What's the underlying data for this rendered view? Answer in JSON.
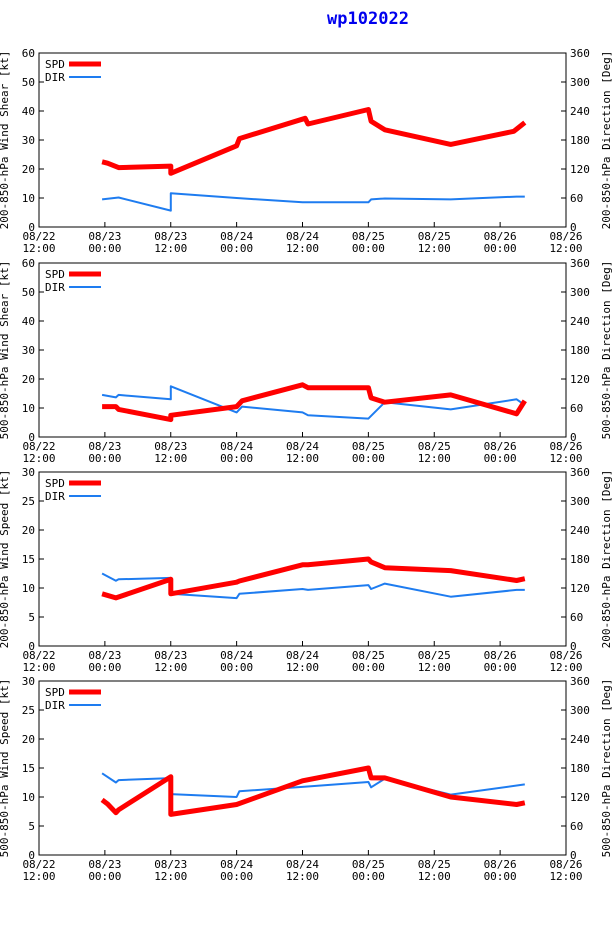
{
  "title": "wp102022",
  "colors": {
    "spd": "#ff0000",
    "dir": "#1e7cf0",
    "axis": "#000000"
  },
  "chart_data": [
    {
      "type": "line",
      "ylabel": "200-850-hPa Wind Shear [kt]",
      "y2label": "200-850-hPa Direction [Deg]",
      "ylim": [
        0,
        60
      ],
      "yticks": [
        0,
        10,
        20,
        30,
        40,
        50,
        60
      ],
      "y2lim": [
        0,
        360
      ],
      "y2ticks": [
        0,
        60,
        120,
        180,
        240,
        300,
        360
      ],
      "xlim": [
        0,
        96
      ],
      "xticks": [
        {
          "t": 0,
          "l1": "08/22",
          "l2": "12:00"
        },
        {
          "t": 12,
          "l1": "08/23",
          "l2": "00:00"
        },
        {
          "t": 24,
          "l1": "08/23",
          "l2": "12:00"
        },
        {
          "t": 36,
          "l1": "08/24",
          "l2": "00:00"
        },
        {
          "t": 48,
          "l1": "08/24",
          "l2": "12:00"
        },
        {
          "t": 60,
          "l1": "08/25",
          "l2": "00:00"
        },
        {
          "t": 72,
          "l1": "08/25",
          "l2": "12:00"
        },
        {
          "t": 84,
          "l1": "08/26",
          "l2": "00:00"
        },
        {
          "t": 96,
          "l1": "08/26",
          "l2": "12:00"
        }
      ],
      "legend": [
        "SPD",
        "DIR"
      ],
      "series": [
        {
          "name": "SPD",
          "axis": "left",
          "x": [
            11.5,
            12.5,
            14.5,
            24,
            24,
            36,
            36.5,
            48.5,
            49,
            60,
            60.5,
            63,
            75,
            86.5,
            88.5
          ],
          "y": [
            22.5,
            22,
            20.5,
            21,
            18.5,
            28,
            30.5,
            37.5,
            35.5,
            40.5,
            36.5,
            33.5,
            28.5,
            33,
            36
          ]
        },
        {
          "name": "DIR",
          "axis": "right",
          "x": [
            11.5,
            14.5,
            24,
            24,
            36,
            48,
            60,
            60.5,
            63,
            75,
            87,
            88.5
          ],
          "y": [
            57,
            61,
            34,
            70,
            60,
            51,
            51,
            57,
            59,
            57,
            63,
            63
          ]
        }
      ]
    },
    {
      "type": "line",
      "ylabel": "500-850-hPa Wind Shear [kt]",
      "y2label": "500-850-hPa Direction [Deg]",
      "ylim": [
        0,
        60
      ],
      "yticks": [
        0,
        10,
        20,
        30,
        40,
        50,
        60
      ],
      "y2lim": [
        0,
        360
      ],
      "y2ticks": [
        0,
        60,
        120,
        180,
        240,
        300,
        360
      ],
      "xlim": [
        0,
        96
      ],
      "xticks": [
        {
          "t": 0,
          "l1": "08/22",
          "l2": "12:00"
        },
        {
          "t": 12,
          "l1": "08/23",
          "l2": "00:00"
        },
        {
          "t": 24,
          "l1": "08/23",
          "l2": "12:00"
        },
        {
          "t": 36,
          "l1": "08/24",
          "l2": "00:00"
        },
        {
          "t": 48,
          "l1": "08/24",
          "l2": "12:00"
        },
        {
          "t": 60,
          "l1": "08/25",
          "l2": "00:00"
        },
        {
          "t": 72,
          "l1": "08/25",
          "l2": "12:00"
        },
        {
          "t": 84,
          "l1": "08/26",
          "l2": "00:00"
        },
        {
          "t": 96,
          "l1": "08/26",
          "l2": "12:00"
        }
      ],
      "legend": [
        "SPD",
        "DIR"
      ],
      "series": [
        {
          "name": "SPD",
          "axis": "left",
          "x": [
            11.5,
            14,
            14.5,
            24,
            24,
            36,
            37,
            48,
            49,
            60,
            60.5,
            63,
            75,
            87,
            88.5
          ],
          "y": [
            10.5,
            10.5,
            9.5,
            6,
            7.5,
            10.5,
            12.5,
            18,
            17,
            17,
            13.5,
            12,
            14.5,
            8,
            12.5
          ]
        },
        {
          "name": "DIR",
          "axis": "right",
          "x": [
            11.5,
            14,
            14.5,
            24,
            24,
            36,
            37,
            48,
            49,
            60,
            63,
            75,
            87,
            88.5
          ],
          "y": [
            87,
            82,
            87,
            78,
            105,
            51,
            63,
            51,
            45,
            38,
            72,
            57,
            78,
            66
          ]
        }
      ]
    },
    {
      "type": "line",
      "ylabel": "200-850-hPa Wind Speed [kt]",
      "y2label": "200-850-hPa Direction [Deg]",
      "ylim": [
        0,
        30
      ],
      "yticks": [
        0,
        5,
        10,
        15,
        20,
        25,
        30
      ],
      "y2lim": [
        0,
        360
      ],
      "y2ticks": [
        0,
        60,
        120,
        180,
        240,
        300,
        360
      ],
      "xlim": [
        0,
        96
      ],
      "xticks": [
        {
          "t": 0,
          "l1": "08/22",
          "l2": "12:00"
        },
        {
          "t": 12,
          "l1": "08/23",
          "l2": "00:00"
        },
        {
          "t": 24,
          "l1": "08/23",
          "l2": "12:00"
        },
        {
          "t": 36,
          "l1": "08/24",
          "l2": "00:00"
        },
        {
          "t": 48,
          "l1": "08/24",
          "l2": "12:00"
        },
        {
          "t": 60,
          "l1": "08/25",
          "l2": "00:00"
        },
        {
          "t": 72,
          "l1": "08/25",
          "l2": "12:00"
        },
        {
          "t": 84,
          "l1": "08/26",
          "l2": "00:00"
        },
        {
          "t": 96,
          "l1": "08/26",
          "l2": "12:00"
        }
      ],
      "legend": [
        "SPD",
        "DIR"
      ],
      "series": [
        {
          "name": "SPD",
          "axis": "left",
          "x": [
            11.5,
            14,
            24,
            24,
            36,
            36.5,
            48,
            49,
            60,
            60.5,
            63,
            75,
            87,
            88.5
          ],
          "y": [
            9,
            8.3,
            11.5,
            9,
            11,
            11.2,
            14,
            14,
            15,
            14.5,
            13.5,
            13,
            11.3,
            11.6
          ]
        },
        {
          "name": "DIR",
          "axis": "right",
          "x": [
            11.5,
            14,
            14.5,
            24,
            24,
            36,
            36.5,
            48,
            49,
            60,
            60.5,
            63,
            75,
            87,
            88.5
          ],
          "y": [
            150,
            135,
            138,
            141,
            108,
            99,
            108,
            118,
            116,
            126,
            118,
            129,
            102,
            116,
            116
          ]
        }
      ]
    },
    {
      "type": "line",
      "ylabel": "500-850-hPa Wind Speed [kt]",
      "y2label": "500-850-hPa Direction [Deg]",
      "ylim": [
        0,
        30
      ],
      "yticks": [
        0,
        5,
        10,
        15,
        20,
        25,
        30
      ],
      "y2lim": [
        0,
        360
      ],
      "y2ticks": [
        0,
        60,
        120,
        180,
        240,
        300,
        360
      ],
      "xlim": [
        0,
        96
      ],
      "xticks": [
        {
          "t": 0,
          "l1": "08/22",
          "l2": "12:00"
        },
        {
          "t": 12,
          "l1": "08/23",
          "l2": "00:00"
        },
        {
          "t": 24,
          "l1": "08/23",
          "l2": "12:00"
        },
        {
          "t": 36,
          "l1": "08/24",
          "l2": "00:00"
        },
        {
          "t": 48,
          "l1": "08/24",
          "l2": "12:00"
        },
        {
          "t": 60,
          "l1": "08/25",
          "l2": "00:00"
        },
        {
          "t": 72,
          "l1": "08/25",
          "l2": "12:00"
        },
        {
          "t": 84,
          "l1": "08/26",
          "l2": "00:00"
        },
        {
          "t": 96,
          "l1": "08/26",
          "l2": "12:00"
        }
      ],
      "legend": [
        "SPD",
        "DIR"
      ],
      "series": [
        {
          "name": "SPD",
          "axis": "left",
          "x": [
            11.5,
            12.5,
            14,
            14.5,
            24,
            24,
            36,
            48,
            60,
            60.5,
            63,
            75,
            87,
            88.5
          ],
          "y": [
            9.5,
            8.8,
            7.3,
            7.8,
            13.5,
            7,
            8.7,
            12.8,
            15,
            13.3,
            13.3,
            10,
            8.7,
            9
          ]
        },
        {
          "name": "DIR",
          "axis": "right",
          "x": [
            11.5,
            14,
            14.5,
            24,
            24,
            36,
            36.5,
            48,
            60,
            60.5,
            63,
            75,
            88.5
          ],
          "y": [
            169,
            150,
            155,
            159,
            126,
            120,
            132,
            141,
            151,
            140,
            158,
            125,
            146
          ]
        }
      ]
    }
  ]
}
